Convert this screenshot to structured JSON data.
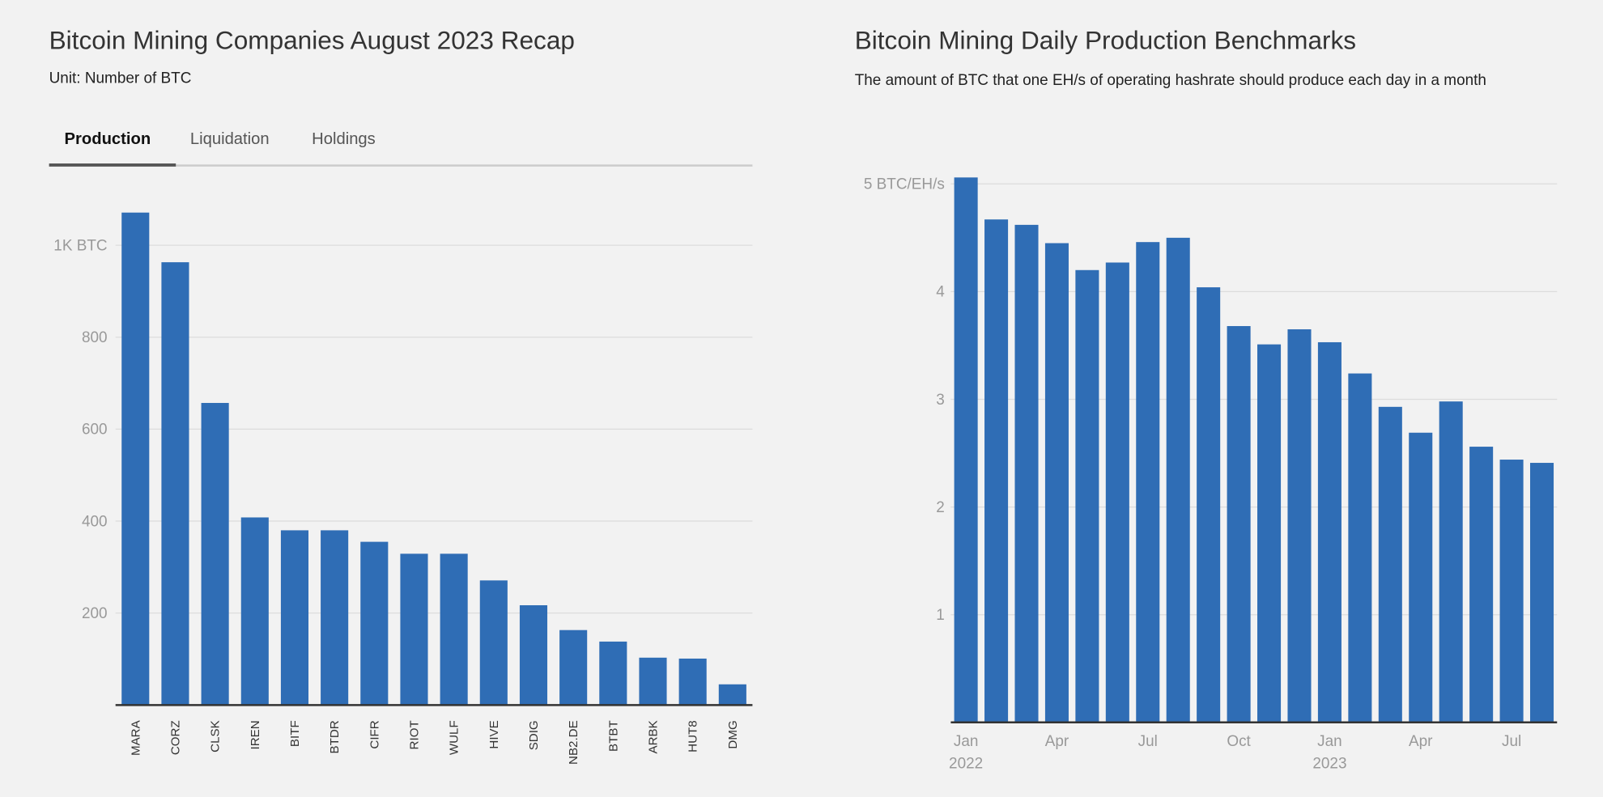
{
  "left": {
    "title": "Bitcoin Mining Companies August 2023 Recap",
    "subtitle": "Unit: Number of BTC",
    "tabs": [
      {
        "label": "Production",
        "active": true
      },
      {
        "label": "Liquidation",
        "active": false
      },
      {
        "label": "Holdings",
        "active": false
      }
    ]
  },
  "right": {
    "title": "Bitcoin Mining Daily Production Benchmarks",
    "subtitle": "The amount of BTC that one EH/s of operating hashrate should produce each day in a month"
  },
  "chart_data": [
    {
      "type": "bar",
      "categories": [
        "MARA",
        "CORZ",
        "CLSK",
        "IREN",
        "BITF",
        "BTDR",
        "CIFR",
        "RIOT",
        "WULF",
        "HIVE",
        "SDIG",
        "NB2.DE",
        "BTBT",
        "ARBK",
        "HUT8",
        "DMG"
      ],
      "values": [
        1071,
        963,
        657,
        408,
        380,
        380,
        355,
        329,
        329,
        271,
        217,
        163,
        138,
        103,
        101,
        45
      ],
      "ylim": [
        0,
        1000
      ],
      "yticks": [
        {
          "v": 200,
          "label": "200"
        },
        {
          "v": 400,
          "label": "400"
        },
        {
          "v": 600,
          "label": "600"
        },
        {
          "v": 800,
          "label": "800"
        },
        {
          "v": 1000,
          "label": "1K BTC"
        }
      ],
      "grid": true,
      "color": "#2f6db5"
    },
    {
      "type": "bar",
      "categories": [
        "2022-01",
        "2022-02",
        "2022-03",
        "2022-04",
        "2022-05",
        "2022-06",
        "2022-07",
        "2022-08",
        "2022-09",
        "2022-10",
        "2022-11",
        "2022-12",
        "2023-01",
        "2023-02",
        "2023-03",
        "2023-04",
        "2023-05",
        "2023-06",
        "2023-07",
        "2023-08"
      ],
      "values": [
        5.06,
        4.67,
        4.62,
        4.45,
        4.2,
        4.27,
        4.46,
        4.5,
        4.04,
        3.68,
        3.51,
        3.65,
        3.53,
        3.24,
        2.93,
        2.69,
        2.98,
        2.56,
        2.44,
        2.41
      ],
      "ylim": [
        0,
        5
      ],
      "yticks": [
        {
          "v": 1,
          "label": "1"
        },
        {
          "v": 2,
          "label": "2"
        },
        {
          "v": 3,
          "label": "3"
        },
        {
          "v": 4,
          "label": "4"
        },
        {
          "v": 5,
          "label": "5 BTC/EH/s"
        }
      ],
      "xticks": [
        {
          "i": 0,
          "label": "Jan",
          "year": "2022"
        },
        {
          "i": 3,
          "label": "Apr"
        },
        {
          "i": 6,
          "label": "Jul"
        },
        {
          "i": 9,
          "label": "Oct"
        },
        {
          "i": 12,
          "label": "Jan",
          "year": "2023"
        },
        {
          "i": 15,
          "label": "Apr"
        },
        {
          "i": 18,
          "label": "Jul"
        }
      ],
      "grid": true,
      "color": "#2f6db5"
    }
  ]
}
